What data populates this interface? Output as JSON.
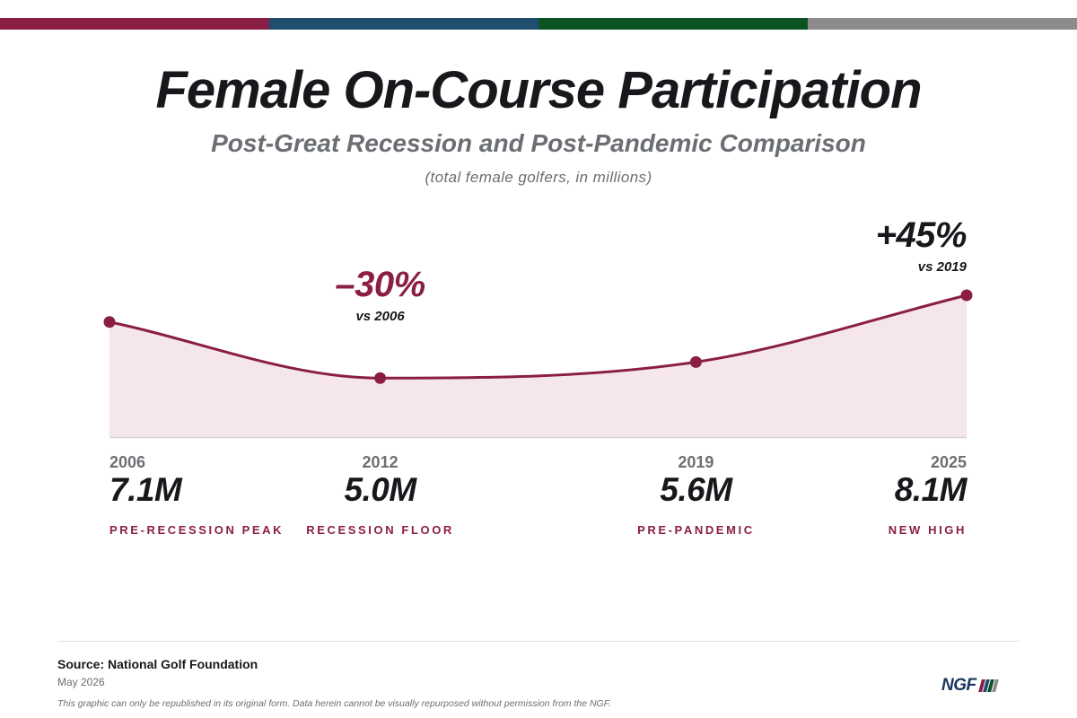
{
  "header": {
    "title": "Female On-Course Participation",
    "subtitle": "Post-Great Recession and Post-Pandemic Comparison",
    "units_note": "(total female golfers, in millions)"
  },
  "brand_colors": [
    "#8a1e45",
    "#1f4e6e",
    "#0c5324",
    "#8c8c8c"
  ],
  "chart_data": {
    "type": "area",
    "x": [
      2006,
      2012,
      2019,
      2025
    ],
    "series": [
      {
        "values": [
          7.1,
          5.0,
          5.6,
          8.1
        ]
      }
    ],
    "value_labels": [
      "7.1M",
      "5.0M",
      "5.6M",
      "8.1M"
    ],
    "point_tags": [
      "PRE-RECESSION PEAK",
      "RECESSION FLOOR",
      "PRE-PANDEMIC",
      "NEW HIGH"
    ],
    "callouts": [
      {
        "text": "–30%",
        "sub": "vs 2006",
        "at": 2012
      },
      {
        "text": "+45%",
        "sub": "vs 2019",
        "at": 2025
      }
    ],
    "line_color": "#8a1e45",
    "fill_color": "#f5e6eb",
    "grid": false,
    "legend": "none"
  },
  "footer": {
    "source": "Source: National Golf Foundation",
    "date": "May 2026",
    "disclaimer": "This graphic can only be republished in its original form. Data herein cannot be visually repurposed without permission from the NGF.",
    "logo_text": "NGF"
  }
}
